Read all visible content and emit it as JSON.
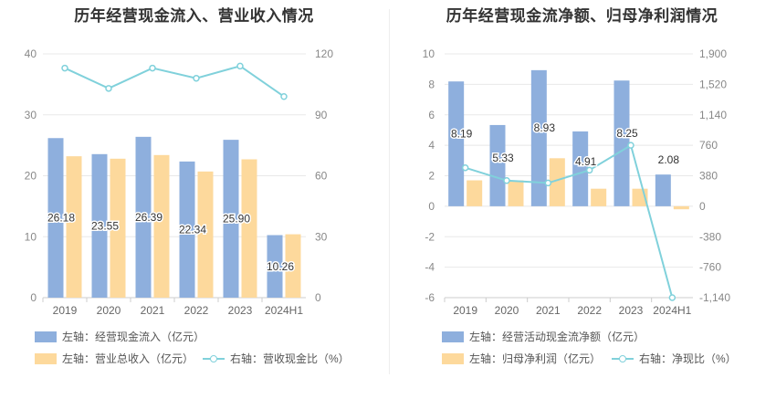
{
  "charts": [
    {
      "title": "历年经营现金流入、营业收入情况",
      "legend": [
        "左轴：经营现金流入（亿元）",
        "左轴：营业总收入（亿元）",
        "右轴：营收现金比（%）"
      ]
    },
    {
      "title": "历年经营现金流净额、归母净利润情况",
      "legend": [
        "左轴：经营活动现金流净额（亿元）",
        "左轴：归母净利润（亿元）",
        "右轴：净现比（%）"
      ]
    }
  ],
  "colors": {
    "bar1": "#8eafdd",
    "bar2": "#fdd99c",
    "line": "#80d1db"
  },
  "chart_data": [
    {
      "type": "bar",
      "title": "历年经营现金流入、营业收入情况",
      "categories": [
        "2019",
        "2020",
        "2021",
        "2022",
        "2023",
        "2024H1"
      ],
      "series": [
        {
          "name": "左轴：经营现金流入（亿元）",
          "axis": "left",
          "type": "bar",
          "values": [
            26.18,
            23.55,
            26.39,
            22.34,
            25.9,
            10.26
          ],
          "labels": [
            "26.18",
            "23.55",
            "26.39",
            "22.34",
            "25.90",
            "10.26"
          ]
        },
        {
          "name": "左轴：营业总收入（亿元）",
          "axis": "left",
          "type": "bar",
          "values": [
            23.2,
            22.8,
            23.4,
            20.7,
            22.7,
            10.4
          ]
        },
        {
          "name": "右轴：营收现金比（%）",
          "axis": "right",
          "type": "line",
          "values": [
            113,
            103,
            113,
            108,
            114,
            99
          ]
        }
      ],
      "left_axis": {
        "min": 0,
        "max": 40,
        "ticks": [
          "0",
          "10",
          "20",
          "30",
          "40"
        ]
      },
      "right_axis": {
        "min": 0,
        "max": 120,
        "ticks": [
          "0",
          "30",
          "60",
          "90",
          "120"
        ]
      },
      "legend_position": "bottom"
    },
    {
      "type": "bar",
      "title": "历年经营现金流净额、归母净利润情况",
      "categories": [
        "2019",
        "2020",
        "2021",
        "2022",
        "2023",
        "2024H1"
      ],
      "series": [
        {
          "name": "左轴：经营活动现金流净额（亿元）",
          "axis": "left",
          "type": "bar",
          "values": [
            8.19,
            5.33,
            8.93,
            4.91,
            8.25,
            2.08
          ],
          "labels": [
            "8.19",
            "5.33",
            "8.93",
            "4.91",
            "8.25",
            "2.08"
          ]
        },
        {
          "name": "左轴：归母净利润（亿元）",
          "axis": "left",
          "type": "bar",
          "values": [
            1.7,
            1.7,
            3.15,
            1.15,
            1.15,
            -0.2
          ]
        },
        {
          "name": "右轴：净现比（%）",
          "axis": "right",
          "type": "line",
          "values": [
            480,
            320,
            290,
            450,
            760,
            -1140
          ]
        }
      ],
      "left_axis": {
        "min": -6,
        "max": 10,
        "ticks": [
          "-6",
          "-4",
          "-2",
          "0",
          "2",
          "4",
          "6",
          "8",
          "10"
        ]
      },
      "right_axis": {
        "min": -1140,
        "max": 1900,
        "ticks": [
          "-1,140",
          "-760",
          "-380",
          "0",
          "380",
          "760",
          "1,140",
          "1,520",
          "1,900"
        ]
      },
      "legend_position": "bottom"
    }
  ]
}
